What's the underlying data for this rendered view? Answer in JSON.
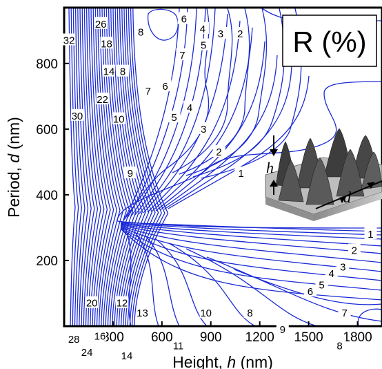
{
  "chart_data": {
    "type": "contour",
    "xlabel_main": "Height, ",
    "xlabel_var": "h",
    "xlabel_unit": " (nm)",
    "ylabel_main": "Period, ",
    "ylabel_var": "d",
    "ylabel_unit": " (nm)",
    "xlim": [
      0,
      1950
    ],
    "ylim": [
      0,
      970
    ],
    "xticks": [
      300,
      600,
      900,
      1200,
      1500,
      1800
    ],
    "yticks": [
      200,
      400,
      600,
      800
    ],
    "annotation_box": "R (%)",
    "inset_labels": {
      "height": "h",
      "period": "d"
    },
    "contour_labels": [
      {
        "text": "1",
        "x": 1680,
        "y": 935
      },
      {
        "text": "2",
        "x": 1080,
        "y": 890
      },
      {
        "text": "3",
        "x": 960,
        "y": 890
      },
      {
        "text": "4",
        "x": 850,
        "y": 905
      },
      {
        "text": "5",
        "x": 855,
        "y": 855
      },
      {
        "text": "6",
        "x": 735,
        "y": 935
      },
      {
        "text": "7",
        "x": 725,
        "y": 825
      },
      {
        "text": "8",
        "x": 470,
        "y": 895
      },
      {
        "text": "6",
        "x": 620,
        "y": 730
      },
      {
        "text": "5",
        "x": 675,
        "y": 635
      },
      {
        "text": "4",
        "x": 770,
        "y": 665
      },
      {
        "text": "3",
        "x": 855,
        "y": 600
      },
      {
        "text": "2",
        "x": 950,
        "y": 530
      },
      {
        "text": "7",
        "x": 515,
        "y": 715
      },
      {
        "text": "1",
        "x": 1085,
        "y": 465
      },
      {
        "text": "9",
        "x": 405,
        "y": 465
      },
      {
        "text": "10",
        "x": 335,
        "y": 630
      },
      {
        "text": "8",
        "x": 360,
        "y": 775
      },
      {
        "text": "14",
        "x": 275,
        "y": 775
      },
      {
        "text": "22",
        "x": 235,
        "y": 690
      },
      {
        "text": "18",
        "x": 260,
        "y": 860
      },
      {
        "text": "26",
        "x": 225,
        "y": 920
      },
      {
        "text": "32",
        "x": 30,
        "y": 870
      },
      {
        "text": "30",
        "x": 80,
        "y": 640
      },
      {
        "text": "1",
        "x": 1880,
        "y": 280
      },
      {
        "text": "2",
        "x": 1780,
        "y": 230
      },
      {
        "text": "3",
        "x": 1710,
        "y": 180
      },
      {
        "text": "4",
        "x": 1640,
        "y": 160
      },
      {
        "text": "5",
        "x": 1580,
        "y": 125
      },
      {
        "text": "6",
        "x": 1510,
        "y": 105
      },
      {
        "text": "7",
        "x": 1720,
        "y": 40
      },
      {
        "text": "8",
        "x": 1690,
        "y": -60
      },
      {
        "text": "8",
        "x": 1140,
        "y": 40
      },
      {
        "text": "9",
        "x": 1340,
        "y": -10
      },
      {
        "text": "10",
        "x": 870,
        "y": 40
      },
      {
        "text": "11",
        "x": 700,
        "y": -60
      },
      {
        "text": "12",
        "x": 355,
        "y": 70
      },
      {
        "text": "13",
        "x": 480,
        "y": 40
      },
      {
        "text": "14",
        "x": 385,
        "y": -90
      },
      {
        "text": "16",
        "x": 220,
        "y": -30
      },
      {
        "text": "20",
        "x": 170,
        "y": 70
      },
      {
        "text": "24",
        "x": 140,
        "y": -80
      },
      {
        "text": "28",
        "x": 60,
        "y": -40
      }
    ]
  }
}
